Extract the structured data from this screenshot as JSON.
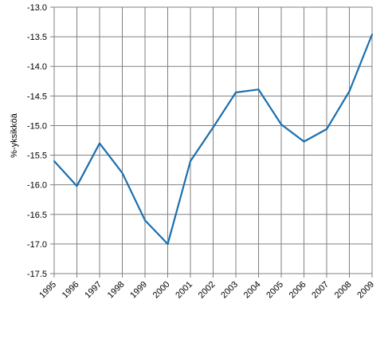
{
  "chart_data": {
    "type": "line",
    "title": "",
    "xlabel": "",
    "ylabel": "%-yksikköä",
    "categories": [
      "1995",
      "1996",
      "1997",
      "1998",
      "1999",
      "2000",
      "2001",
      "2002",
      "2003",
      "2004",
      "2005",
      "2006",
      "2007",
      "2008",
      "2009"
    ],
    "series": [
      {
        "values": [
          -15.6,
          -16.02,
          -15.3,
          -15.8,
          -16.6,
          -17.0,
          -15.6,
          -15.03,
          -14.44,
          -14.39,
          -14.98,
          -15.27,
          -15.06,
          -14.42,
          -13.46
        ]
      }
    ],
    "ylim": [
      -17.5,
      -13.0
    ],
    "yticks": [
      "-13.0",
      "-13.5",
      "-14.0",
      "-14.5",
      "-15.0",
      "-15.5",
      "-16.0",
      "-16.5",
      "-17.0",
      "-17.5"
    ],
    "grid": true,
    "colors": {
      "line": "#1a6fb0",
      "grid": "#808080",
      "axis": "#808080"
    }
  }
}
